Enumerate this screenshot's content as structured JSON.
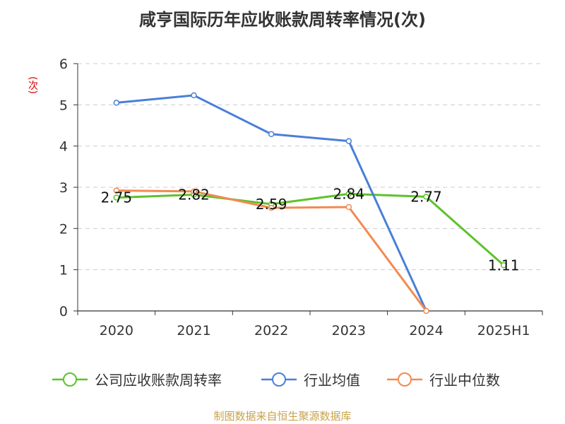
{
  "title": "咸亨国际历年应收账款周转率情况(次)",
  "source": "制图数据来自恒生聚源数据库",
  "chart_data": {
    "type": "line",
    "title": "咸亨国际历年应收账款周转率情况(次)",
    "ylabel": "(次)",
    "categories": [
      "2020",
      "2021",
      "2022",
      "2023",
      "2024",
      "2025H1"
    ],
    "ylim": [
      0,
      6
    ],
    "yticks": [
      0,
      1,
      2,
      3,
      4,
      5,
      6
    ],
    "grid": true,
    "legend_position": "bottom",
    "series": [
      {
        "name": "公司应收账款周转率",
        "color": "#5cc32a",
        "values": [
          2.75,
          2.82,
          2.59,
          2.84,
          2.77,
          1.11
        ],
        "labels": [
          "2.75",
          "2.82",
          "2.59",
          "2.84",
          "2.77",
          "1.11"
        ]
      },
      {
        "name": "行业均值",
        "color": "#4a7fd8",
        "values": [
          5.05,
          5.23,
          4.29,
          4.12,
          0,
          null
        ]
      },
      {
        "name": "行业中位数",
        "color": "#f28a52",
        "values": [
          2.92,
          2.9,
          2.5,
          2.52,
          0,
          null
        ]
      }
    ]
  }
}
